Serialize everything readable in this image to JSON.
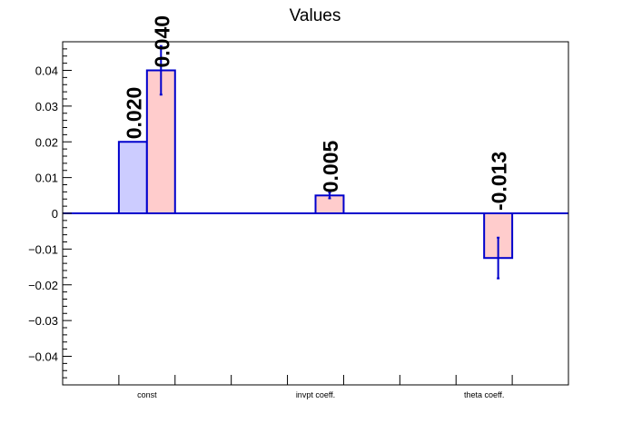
{
  "chart_data": {
    "type": "bar",
    "title": "Values",
    "xlabel": "",
    "ylabel": "",
    "ylim": [
      -0.048,
      0.048
    ],
    "categories": [
      "const",
      "invpt coeff.",
      "theta coeff."
    ],
    "yticks": [
      0.04,
      0.03,
      0.02,
      0.01,
      0,
      -0.01,
      -0.02,
      -0.03,
      -0.04
    ],
    "ytick_labels": [
      "0.04",
      "0.03",
      "0.02",
      "0.01",
      "0",
      "−0.01",
      "−0.02",
      "−0.03",
      "−0.04"
    ],
    "series": [
      {
        "values": [
          0.02,
          null,
          null
        ],
        "errors": [
          0,
          null,
          null
        ],
        "labels": [
          "0.020",
          "",
          ""
        ],
        "fill": "#ccccff",
        "stroke": "#0000cc"
      },
      {
        "values": [
          0.04,
          0.005,
          -0.0125
        ],
        "errors": [
          0.0068,
          0.0008,
          0.0057
        ],
        "labels": [
          "0.040",
          "0.005",
          "-0.013"
        ],
        "fill": "#ffcccc",
        "stroke": "#0000cc"
      }
    ],
    "grid": false,
    "legend": "none",
    "colors": {
      "axis": "#000000",
      "zero_line": "#0000cc",
      "error_bar": "#0000cc"
    }
  }
}
